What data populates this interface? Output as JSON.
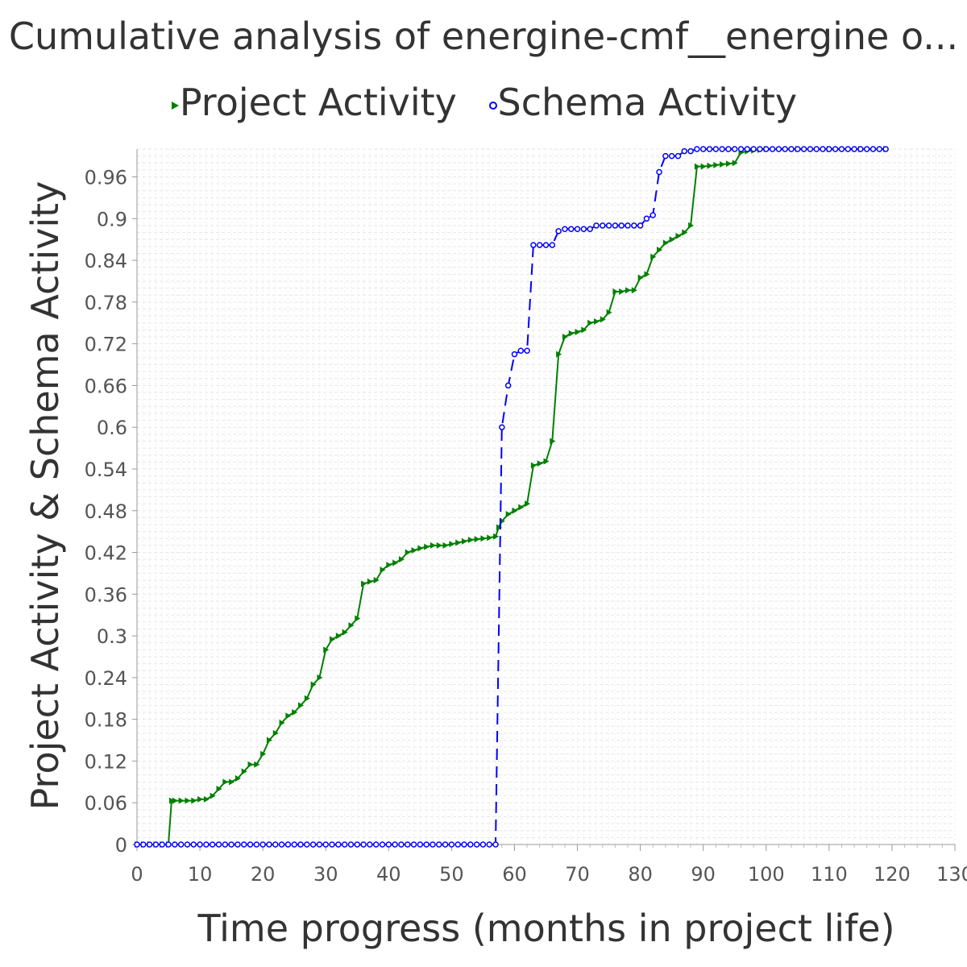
{
  "chart_data": {
    "type": "line",
    "title": "Cumulative analysis of energine-cmf__energine o...",
    "xlabel": "Time progress (months in project life)",
    "ylabel": "Project Activity & Schema Activity",
    "xlim": [
      0,
      130
    ],
    "ylim": [
      0,
      1.0
    ],
    "x_ticks": [
      "0",
      "10",
      "20",
      "30",
      "40",
      "50",
      "60",
      "70",
      "80",
      "90",
      "100",
      "110",
      "120",
      "130"
    ],
    "y_ticks": [
      "0",
      "0.06",
      "0.12",
      "0.18",
      "0.24",
      "0.3",
      "0.36",
      "0.42",
      "0.48",
      "0.54",
      "0.6",
      "0.66",
      "0.72",
      "0.78",
      "0.84",
      "0.9",
      "0.96"
    ],
    "grid": true,
    "legend_position": "top",
    "series": [
      {
        "name": "Project Activity",
        "color": "#008000",
        "marker": "triangle-right",
        "line_style": "solid",
        "points": [
          [
            0,
            0
          ],
          [
            1,
            0
          ],
          [
            2,
            0
          ],
          [
            3,
            0
          ],
          [
            4,
            0
          ],
          [
            5,
            0
          ],
          [
            5.5,
            0.063
          ],
          [
            6,
            0.063
          ],
          [
            7,
            0.063
          ],
          [
            8,
            0.063
          ],
          [
            9,
            0.063
          ],
          [
            10,
            0.065
          ],
          [
            11,
            0.065
          ],
          [
            12,
            0.07
          ],
          [
            13,
            0.08
          ],
          [
            14,
            0.09
          ],
          [
            15,
            0.09
          ],
          [
            16,
            0.095
          ],
          [
            17,
            0.105
          ],
          [
            18,
            0.115
          ],
          [
            19,
            0.115
          ],
          [
            20,
            0.13
          ],
          [
            21,
            0.15
          ],
          [
            22,
            0.16
          ],
          [
            23,
            0.175
          ],
          [
            24,
            0.185
          ],
          [
            25,
            0.19
          ],
          [
            26,
            0.2
          ],
          [
            27,
            0.21
          ],
          [
            28,
            0.23
          ],
          [
            29,
            0.24
          ],
          [
            30,
            0.28
          ],
          [
            31,
            0.295
          ],
          [
            32,
            0.3
          ],
          [
            33,
            0.305
          ],
          [
            34,
            0.315
          ],
          [
            35,
            0.325
          ],
          [
            36,
            0.375
          ],
          [
            37,
            0.378
          ],
          [
            38,
            0.38
          ],
          [
            39,
            0.395
          ],
          [
            40,
            0.402
          ],
          [
            41,
            0.405
          ],
          [
            42,
            0.41
          ],
          [
            43,
            0.42
          ],
          [
            44,
            0.423
          ],
          [
            45,
            0.426
          ],
          [
            46,
            0.428
          ],
          [
            47,
            0.43
          ],
          [
            48,
            0.43
          ],
          [
            49,
            0.43
          ],
          [
            50,
            0.432
          ],
          [
            51,
            0.434
          ],
          [
            52,
            0.436
          ],
          [
            53,
            0.438
          ],
          [
            54,
            0.439
          ],
          [
            55,
            0.44
          ],
          [
            56,
            0.441
          ],
          [
            57,
            0.443
          ],
          [
            57.5,
            0.456
          ],
          [
            58,
            0.465
          ],
          [
            59,
            0.475
          ],
          [
            60,
            0.48
          ],
          [
            61,
            0.485
          ],
          [
            62,
            0.49
          ],
          [
            63,
            0.545
          ],
          [
            64,
            0.548
          ],
          [
            65,
            0.551
          ],
          [
            66,
            0.58
          ],
          [
            67,
            0.705
          ],
          [
            68,
            0.73
          ],
          [
            69,
            0.735
          ],
          [
            70,
            0.737
          ],
          [
            71,
            0.74
          ],
          [
            72,
            0.75
          ],
          [
            73,
            0.752
          ],
          [
            74,
            0.755
          ],
          [
            75,
            0.765
          ],
          [
            76,
            0.795
          ],
          [
            77,
            0.795
          ],
          [
            78,
            0.797
          ],
          [
            79,
            0.797
          ],
          [
            80,
            0.815
          ],
          [
            81,
            0.82
          ],
          [
            82,
            0.845
          ],
          [
            83,
            0.855
          ],
          [
            84,
            0.865
          ],
          [
            85,
            0.87
          ],
          [
            86,
            0.875
          ],
          [
            87,
            0.88
          ],
          [
            88,
            0.89
          ],
          [
            89,
            0.975
          ],
          [
            90,
            0.975
          ],
          [
            91,
            0.976
          ],
          [
            92,
            0.977
          ],
          [
            93,
            0.978
          ],
          [
            94,
            0.979
          ],
          [
            95,
            0.98
          ],
          [
            96,
            0.995
          ],
          [
            97,
            0.997
          ],
          [
            98,
            0.998
          ],
          [
            99,
            0.999
          ],
          [
            100,
            1.0
          ],
          [
            105,
            1.0
          ],
          [
            110,
            1.0
          ],
          [
            115,
            1.0
          ],
          [
            119,
            1.0
          ]
        ]
      },
      {
        "name": "Schema Activity",
        "color": "#0000FF",
        "marker": "circle",
        "line_style": "dashed",
        "points": [
          [
            0,
            0
          ],
          [
            1,
            0
          ],
          [
            2,
            0
          ],
          [
            3,
            0
          ],
          [
            4,
            0
          ],
          [
            5,
            0
          ],
          [
            6,
            0
          ],
          [
            7,
            0
          ],
          [
            8,
            0
          ],
          [
            9,
            0
          ],
          [
            10,
            0
          ],
          [
            11,
            0
          ],
          [
            12,
            0
          ],
          [
            13,
            0
          ],
          [
            14,
            0
          ],
          [
            15,
            0
          ],
          [
            16,
            0
          ],
          [
            17,
            0
          ],
          [
            18,
            0
          ],
          [
            19,
            0
          ],
          [
            20,
            0
          ],
          [
            21,
            0
          ],
          [
            22,
            0
          ],
          [
            23,
            0
          ],
          [
            24,
            0
          ],
          [
            25,
            0
          ],
          [
            26,
            0
          ],
          [
            27,
            0
          ],
          [
            28,
            0
          ],
          [
            29,
            0
          ],
          [
            30,
            0
          ],
          [
            31,
            0
          ],
          [
            32,
            0
          ],
          [
            33,
            0
          ],
          [
            34,
            0
          ],
          [
            35,
            0
          ],
          [
            36,
            0
          ],
          [
            37,
            0
          ],
          [
            38,
            0
          ],
          [
            39,
            0
          ],
          [
            40,
            0
          ],
          [
            41,
            0
          ],
          [
            42,
            0
          ],
          [
            43,
            0
          ],
          [
            44,
            0
          ],
          [
            45,
            0
          ],
          [
            46,
            0
          ],
          [
            47,
            0
          ],
          [
            48,
            0
          ],
          [
            49,
            0
          ],
          [
            50,
            0
          ],
          [
            51,
            0
          ],
          [
            52,
            0
          ],
          [
            53,
            0
          ],
          [
            54,
            0
          ],
          [
            55,
            0
          ],
          [
            56,
            0
          ],
          [
            57,
            0
          ],
          [
            58,
            0.6
          ],
          [
            59,
            0.66
          ],
          [
            60,
            0.705
          ],
          [
            61,
            0.71
          ],
          [
            62,
            0.71
          ],
          [
            63,
            0.862
          ],
          [
            64,
            0.862
          ],
          [
            65,
            0.862
          ],
          [
            66,
            0.862
          ],
          [
            67,
            0.882
          ],
          [
            68,
            0.885
          ],
          [
            69,
            0.885
          ],
          [
            70,
            0.885
          ],
          [
            71,
            0.885
          ],
          [
            72,
            0.885
          ],
          [
            73,
            0.89
          ],
          [
            74,
            0.89
          ],
          [
            75,
            0.89
          ],
          [
            76,
            0.89
          ],
          [
            77,
            0.89
          ],
          [
            78,
            0.89
          ],
          [
            79,
            0.89
          ],
          [
            80,
            0.89
          ],
          [
            81,
            0.9
          ],
          [
            82,
            0.905
          ],
          [
            83,
            0.967
          ],
          [
            84,
            0.99
          ],
          [
            85,
            0.99
          ],
          [
            86,
            0.99
          ],
          [
            87,
            0.997
          ],
          [
            88,
            0.997
          ],
          [
            89,
            1.0
          ],
          [
            90,
            1.0
          ],
          [
            91,
            1.0
          ],
          [
            92,
            1.0
          ],
          [
            93,
            1.0
          ],
          [
            94,
            1.0
          ],
          [
            95,
            1.0
          ],
          [
            96,
            1.0
          ],
          [
            97,
            1.0
          ],
          [
            98,
            1.0
          ],
          [
            99,
            1.0
          ],
          [
            100,
            1.0
          ],
          [
            101,
            1.0
          ],
          [
            102,
            1.0
          ],
          [
            103,
            1.0
          ],
          [
            104,
            1.0
          ],
          [
            105,
            1.0
          ],
          [
            106,
            1.0
          ],
          [
            107,
            1.0
          ],
          [
            108,
            1.0
          ],
          [
            109,
            1.0
          ],
          [
            110,
            1.0
          ],
          [
            111,
            1.0
          ],
          [
            112,
            1.0
          ],
          [
            113,
            1.0
          ],
          [
            114,
            1.0
          ],
          [
            115,
            1.0
          ],
          [
            116,
            1.0
          ],
          [
            117,
            1.0
          ],
          [
            118,
            1.0
          ],
          [
            119,
            1.0
          ]
        ]
      }
    ]
  }
}
